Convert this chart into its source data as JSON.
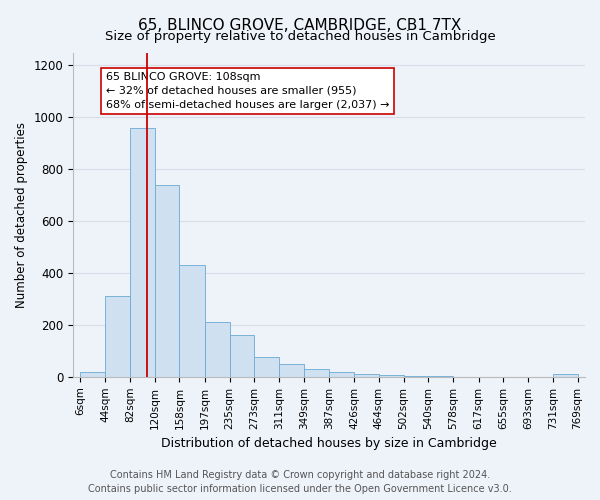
{
  "title": "65, BLINCO GROVE, CAMBRIDGE, CB1 7TX",
  "subtitle": "Size of property relative to detached houses in Cambridge",
  "xlabel": "Distribution of detached houses by size in Cambridge",
  "ylabel": "Number of detached properties",
  "bin_labels": [
    "6sqm",
    "44sqm",
    "82sqm",
    "120sqm",
    "158sqm",
    "197sqm",
    "235sqm",
    "273sqm",
    "311sqm",
    "349sqm",
    "387sqm",
    "426sqm",
    "464sqm",
    "502sqm",
    "540sqm",
    "578sqm",
    "617sqm",
    "655sqm",
    "693sqm",
    "731sqm",
    "769sqm"
  ],
  "bin_edges": [
    6,
    44,
    82,
    120,
    158,
    197,
    235,
    273,
    311,
    349,
    387,
    426,
    464,
    502,
    540,
    578,
    617,
    655,
    693,
    731,
    769
  ],
  "bar_values": [
    20,
    310,
    960,
    740,
    430,
    210,
    160,
    75,
    48,
    32,
    18,
    10,
    8,
    5,
    5,
    0,
    0,
    0,
    0,
    10,
    0
  ],
  "bar_color": "#cfe0f0",
  "bar_edge_color": "#6aaad4",
  "vline_x": 108,
  "vline_color": "#cc0000",
  "annotation_text": "65 BLINCO GROVE: 108sqm\n← 32% of detached houses are smaller (955)\n68% of semi-detached houses are larger (2,037) →",
  "annotation_box_edge": "#cc0000",
  "annotation_box_face": "#ffffff",
  "ylim": [
    0,
    1250
  ],
  "yticks": [
    0,
    200,
    400,
    600,
    800,
    1000,
    1200
  ],
  "footer_line1": "Contains HM Land Registry data © Crown copyright and database right 2024.",
  "footer_line2": "Contains public sector information licensed under the Open Government Licence v3.0.",
  "bg_color": "#eef2f9",
  "plot_bg_color": "#eef2f9",
  "grid_color": "#d8dde8",
  "title_fontsize": 11,
  "subtitle_fontsize": 9.5,
  "xlabel_fontsize": 9,
  "ylabel_fontsize": 8.5,
  "tick_fontsize": 7.5,
  "ytick_fontsize": 8.5,
  "footer_fontsize": 7,
  "annot_fontsize": 8
}
